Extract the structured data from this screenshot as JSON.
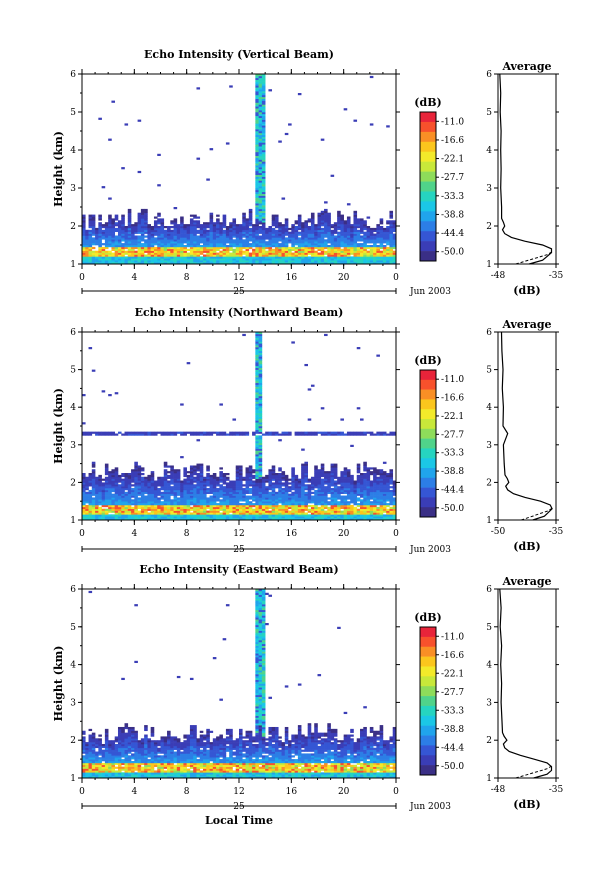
{
  "chart_data": [
    {
      "type": "heatmap",
      "title": "Echo Intensity (Vertical Beam)",
      "xlabel": "",
      "ylabel": "Height (km)",
      "xlim": [
        0,
        24
      ],
      "ylim": [
        1,
        6
      ],
      "x_ticks": [
        "0",
        "4",
        "8",
        "12",
        "16",
        "20",
        "0"
      ],
      "y_ticks": [
        "1",
        "2",
        "3",
        "4",
        "5",
        "6"
      ],
      "date_label": "25",
      "date_suffix": "Jun 2003",
      "colorbar": {
        "unit": "(dB)",
        "labels": [
          "-11.0",
          "-16.6",
          "-22.1",
          "-27.7",
          "-33.3",
          "-38.8",
          "-44.4",
          "-50.0"
        ]
      },
      "field": {
        "floor_db": -50,
        "dense_top_km": 2.3,
        "strong_layer_km": [
          1.2,
          1.45
        ],
        "spike_time_h": 13.7,
        "spike_top_km": 6.0,
        "extra_band_km": null
      },
      "profile": {
        "title": "Average",
        "xlabel": "(dB)",
        "xlim": [
          -48,
          -35
        ],
        "x_ticks": [
          "-48",
          "-35"
        ],
        "height_km": [
          1.0,
          1.1,
          1.2,
          1.3,
          1.4,
          1.5,
          1.6,
          1.7,
          1.8,
          1.9,
          2.0,
          2.1,
          2.2,
          2.5,
          3.0,
          3.5,
          4.0,
          4.5,
          5.0,
          5.5,
          6.0
        ],
        "mean_db": [
          -41,
          -38,
          -37,
          -36,
          -36,
          -38,
          -42,
          -45,
          -46.5,
          -47,
          -46.5,
          -46.8,
          -47.2,
          -47.2,
          -47.4,
          -47.3,
          -47.4,
          -47.3,
          -47.5,
          -47.4,
          -47.6
        ],
        "lower_db": [
          -44,
          -43,
          -42,
          -41,
          -40,
          -39,
          -38,
          -37,
          -36.5,
          -36
        ]
      }
    },
    {
      "type": "heatmap",
      "title": "Echo Intensity (Northward Beam)",
      "xlabel": "",
      "ylabel": "Height (km)",
      "xlim": [
        0,
        24
      ],
      "ylim": [
        1,
        6
      ],
      "x_ticks": [
        "0",
        "4",
        "8",
        "12",
        "16",
        "20",
        "0"
      ],
      "y_ticks": [
        "1",
        "2",
        "3",
        "4",
        "5",
        "6"
      ],
      "date_label": "25",
      "date_suffix": "Jun 2003",
      "colorbar": {
        "unit": "(dB)",
        "labels": [
          "-11.0",
          "-16.6",
          "-22.1",
          "-27.7",
          "-33.3",
          "-38.8",
          "-44.4",
          "-50.0"
        ]
      },
      "field": {
        "floor_db": -50,
        "dense_top_km": 2.4,
        "strong_layer_km": [
          1.15,
          1.4
        ],
        "spike_time_h": 13.5,
        "spike_top_km": 6.0,
        "extra_band_km": 3.3
      },
      "profile": {
        "title": "Average",
        "xlabel": "(dB)",
        "xlim": [
          -50,
          -35
        ],
        "x_ticks": [
          "-50",
          "-35"
        ],
        "height_km": [
          1.0,
          1.1,
          1.2,
          1.3,
          1.4,
          1.5,
          1.6,
          1.7,
          1.8,
          1.9,
          2.0,
          2.1,
          2.2,
          2.5,
          3.0,
          3.3,
          3.5,
          4.0,
          4.5,
          5.0,
          5.5,
          6.0
        ],
        "mean_db": [
          -41,
          -38,
          -37,
          -36,
          -36.5,
          -39,
          -43,
          -46,
          -47.5,
          -48,
          -47.2,
          -47.6,
          -48.2,
          -48.4,
          -48.6,
          -47.5,
          -48.7,
          -48.6,
          -48.9,
          -48.7,
          -49,
          -49.1
        ],
        "lower_db": [
          -44,
          -43,
          -42,
          -41,
          -40,
          -39,
          -38,
          -37,
          -36.5,
          -36
        ]
      }
    },
    {
      "type": "heatmap",
      "title": "Echo Intensity (Eastward Beam)",
      "xlabel": "Local Time",
      "ylabel": "Height (km)",
      "xlim": [
        0,
        24
      ],
      "ylim": [
        1,
        6
      ],
      "x_ticks": [
        "0",
        "4",
        "8",
        "12",
        "16",
        "20",
        "0"
      ],
      "y_ticks": [
        "1",
        "2",
        "3",
        "4",
        "5",
        "6"
      ],
      "date_label": "25",
      "date_suffix": "Jun 2003",
      "colorbar": {
        "unit": "(dB)",
        "labels": [
          "-11.0",
          "-16.6",
          "-22.1",
          "-27.7",
          "-33.3",
          "-38.8",
          "-44.4",
          "-50.0"
        ]
      },
      "field": {
        "floor_db": -50,
        "dense_top_km": 2.3,
        "strong_layer_km": [
          1.15,
          1.4
        ],
        "spike_time_h": 13.6,
        "spike_top_km": 6.0,
        "extra_band_km": null
      },
      "profile": {
        "title": "Average",
        "xlabel": "(dB)",
        "xlim": [
          -48,
          -35
        ],
        "x_ticks": [
          "-48",
          "-35"
        ],
        "height_km": [
          1.0,
          1.1,
          1.2,
          1.3,
          1.4,
          1.5,
          1.6,
          1.7,
          1.8,
          1.9,
          2.0,
          2.1,
          2.2,
          2.5,
          3.0,
          3.5,
          4.0,
          4.5,
          5.0,
          5.5,
          6.0
        ],
        "mean_db": [
          -40,
          -37,
          -36,
          -36,
          -37,
          -40,
          -43,
          -45.5,
          -46.5,
          -46.8,
          -46,
          -46.6,
          -47,
          -47.1,
          -47.3,
          -47.2,
          -47.4,
          -47.2,
          -47.5,
          -47.3,
          -47.6
        ],
        "lower_db": [
          -44,
          -43,
          -42,
          -41,
          -40,
          -39,
          -38,
          -37,
          -36.5,
          -36
        ]
      }
    }
  ],
  "colors": {
    "scale": [
      "#e8243a",
      "#f7512c",
      "#f98f25",
      "#fbc61d",
      "#f3ea2a",
      "#c8e83a",
      "#8edc5a",
      "#50d38a",
      "#26d4c0",
      "#1bc7e6",
      "#20a4ec",
      "#2c7ee6",
      "#3556d4",
      "#3a3db6",
      "#3a2f86"
    ],
    "axis": "#000000",
    "background": "#ffffff"
  }
}
